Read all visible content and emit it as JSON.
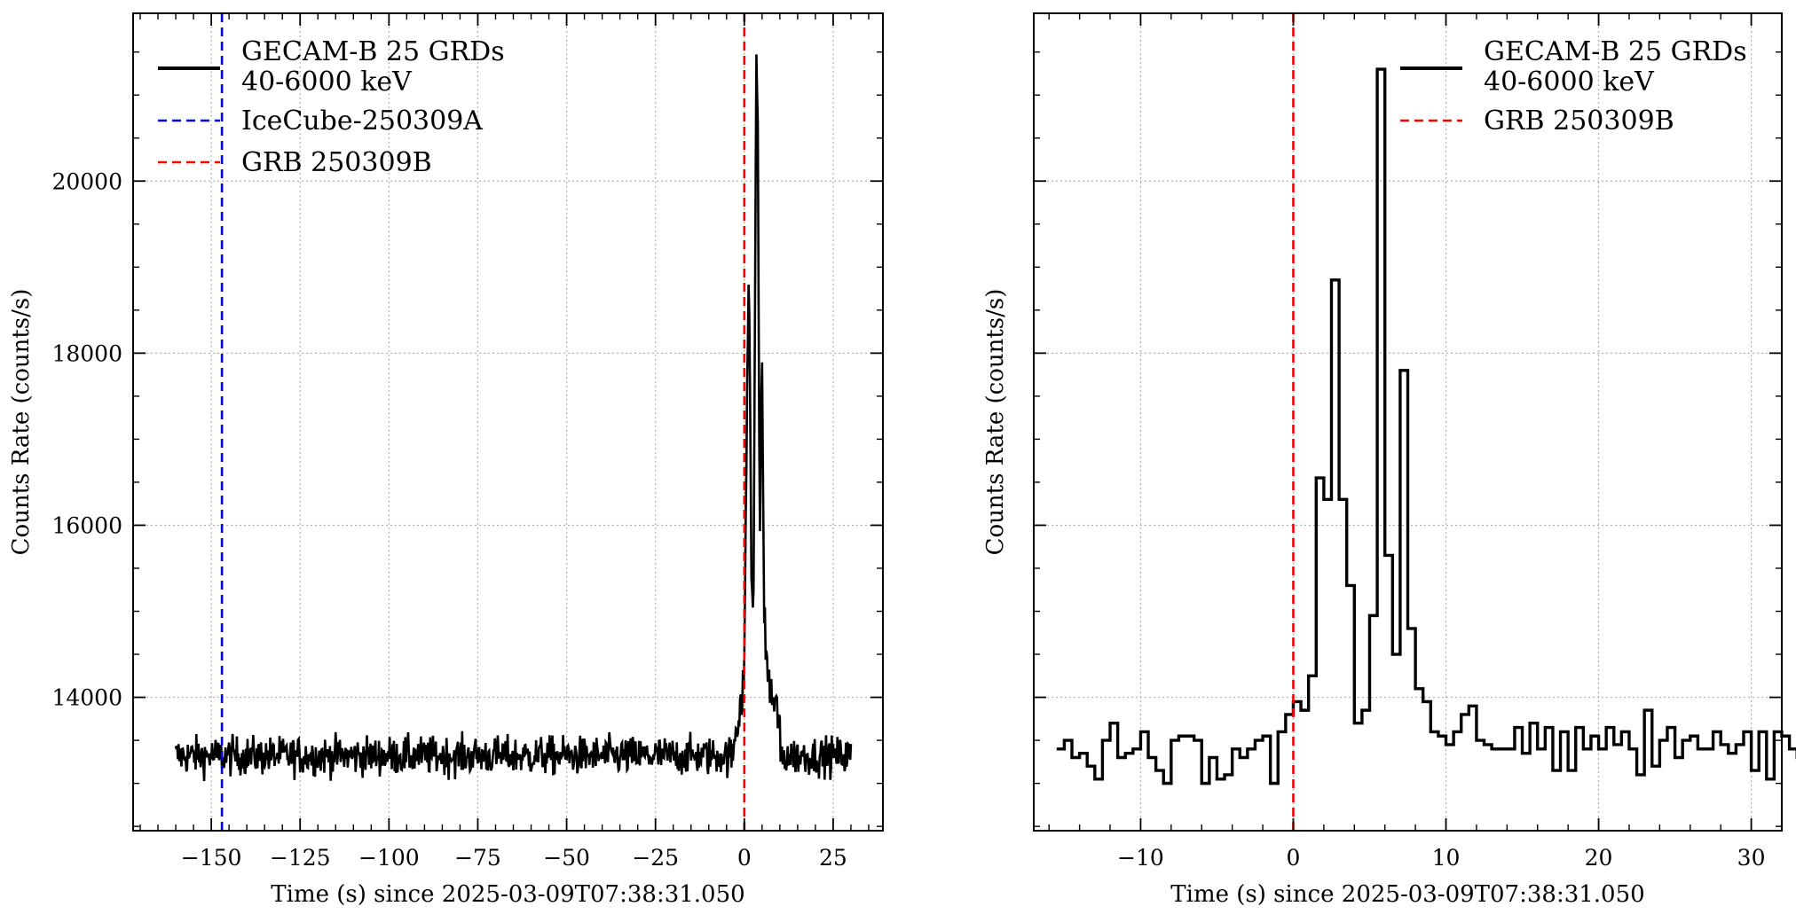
{
  "chart_data": [
    {
      "type": "line",
      "panel": "left",
      "xlabel": "Time (s) since 2025-03-09T07:38:31.050",
      "ylabel": "Counts Rate (counts/s)",
      "xlim": [
        -172,
        39
      ],
      "ylim": [
        12450,
        21950
      ],
      "xticks": [
        -150,
        -125,
        -100,
        -75,
        -50,
        -25,
        0,
        25
      ],
      "xtick_labels": [
        "−150",
        "−125",
        "−100",
        "−75",
        "−50",
        "−25",
        "0",
        "25"
      ],
      "yticks": [
        14000,
        16000,
        18000,
        20000
      ],
      "ytick_labels": [
        "14000",
        "16000",
        "18000",
        "20000"
      ],
      "grid": true,
      "legend_position": "top-left",
      "series": [
        {
          "name": "GECAM-B 25 GRDs",
          "name_line2": "40-6000 keV",
          "color": "#000000",
          "style": "solid",
          "x_range": [
            -160,
            30
          ],
          "baseline": 13320,
          "noise_amplitude": 160,
          "peaks_x": [
            -3,
            -1,
            0,
            0.5,
            1.3,
            2,
            2.5,
            3.4,
            3.8,
            4.3,
            5,
            5.6,
            6.5,
            8,
            10
          ],
          "peaks_y": [
            13600,
            13900,
            14300,
            16600,
            19000,
            15500,
            14800,
            21400,
            20500,
            16000,
            17800,
            15000,
            14300,
            14000,
            13700
          ]
        },
        {
          "name": "IceCube-250309A",
          "color": "#0000ff",
          "style": "dashed",
          "vline_x": -147
        },
        {
          "name": "GRB 250309B",
          "color": "#ff0000",
          "style": "dashed",
          "vline_x": 0
        }
      ]
    },
    {
      "type": "line",
      "panel": "right",
      "xlabel": "Time (s) since 2025-03-09T07:38:31.050",
      "ylabel": "Counts Rate (counts/s)",
      "xlim": [
        -17,
        32
      ],
      "ylim": [
        12450,
        21950
      ],
      "xticks": [
        -10,
        0,
        10,
        20,
        30
      ],
      "xtick_labels": [
        "−10",
        "0",
        "10",
        "20",
        "30"
      ],
      "yticks": [
        14000,
        16000,
        18000,
        20000
      ],
      "grid": true,
      "legend_position": "top-right",
      "series": [
        {
          "name": "GECAM-B 25 GRDs",
          "name_line2": "40-6000 keV",
          "color": "#000000",
          "style": "steps-post",
          "bin_width": 0.5,
          "x_start": -15.5,
          "values": [
            13400,
            13500,
            13300,
            13350,
            13200,
            13050,
            13500,
            13700,
            13300,
            13350,
            13400,
            13600,
            13300,
            13150,
            13000,
            13500,
            13550,
            13550,
            13500,
            13000,
            13300,
            13050,
            13100,
            13400,
            13300,
            13400,
            13500,
            13550,
            13000,
            13600,
            13800,
            13950,
            13850,
            14250,
            16550,
            16300,
            18850,
            16300,
            15300,
            13700,
            13850,
            14950,
            21300,
            15650,
            14500,
            17800,
            14800,
            14100,
            13950,
            13600,
            13550,
            13450,
            13600,
            13800,
            13900,
            13500,
            13450,
            13400,
            13400,
            13400,
            13650,
            13350,
            13700,
            13400,
            13650,
            13150,
            13600,
            13150,
            13650,
            13400,
            13550,
            13400,
            13650,
            13450,
            13600,
            13400,
            13100,
            13850,
            13200,
            13500,
            13650,
            13300,
            13500,
            13550,
            13400,
            13400,
            13600,
            13450,
            13350,
            13450,
            13600,
            13150,
            13600,
            13050,
            13600,
            13550,
            13400,
            13300,
            13500,
            13500,
            13750,
            13600,
            13600
          ]
        },
        {
          "name": "GRB 250309B",
          "color": "#ff0000",
          "style": "dashed",
          "vline_x": 0
        }
      ]
    }
  ]
}
